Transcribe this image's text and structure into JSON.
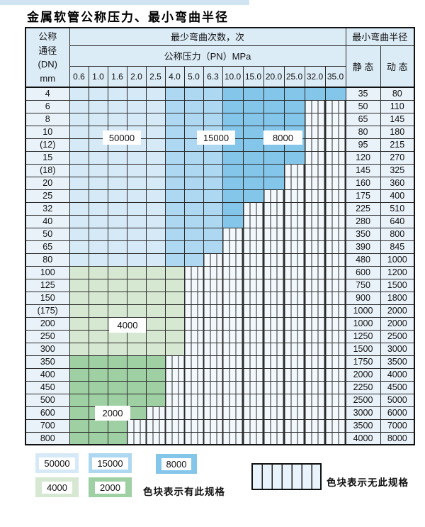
{
  "page_title": "金属软管公称压力、最小弯曲半径",
  "colors": {
    "blue_50000": "#d6e9f6",
    "blue_15000": "#aed8f1",
    "blue_8000": "#84c5ea",
    "green_4000": "#d6e8d1",
    "green_2000": "#9fd0a3",
    "hatch_bg": "#f2f8fc",
    "header_bg": "#dcecf7",
    "cell_bg": "#e9f2f9",
    "top_strip": "#cfe3f0"
  },
  "table": {
    "corner_lines": [
      "公称",
      "通径",
      "(DN)",
      "mm"
    ],
    "bend_cycles_header": "最少弯曲次数，次",
    "pressure_header": "公称压力（PN）MPa",
    "pressures": [
      "0.6",
      "1.0",
      "1.6",
      "2.0",
      "2.5",
      "4.0",
      "5.0",
      "6.3",
      "10.0",
      "15.0",
      "20.0",
      "25.0",
      "32.0",
      "35.0"
    ],
    "radius_header": "最小弯曲半径",
    "static_header": "静 态",
    "dynamic_header": "动 态",
    "rows": [
      {
        "dn": "4",
        "zone": "blue",
        "colored_through": "35.0",
        "static": 35,
        "dynamic": 80
      },
      {
        "dn": "6",
        "zone": "blue",
        "colored_through": "25.0",
        "static": 50,
        "dynamic": 110
      },
      {
        "dn": "8",
        "zone": "blue",
        "colored_through": "25.0",
        "static": 65,
        "dynamic": 145
      },
      {
        "dn": "10",
        "zone": "blue",
        "colored_through": "25.0",
        "static": 80,
        "dynamic": 180
      },
      {
        "dn": "(12)",
        "zone": "blue",
        "colored_through": "25.0",
        "static": 95,
        "dynamic": 215
      },
      {
        "dn": "15",
        "zone": "blue",
        "colored_through": "25.0",
        "static": 120,
        "dynamic": 270
      },
      {
        "dn": "(18)",
        "zone": "blue",
        "colored_through": "20.0",
        "static": 145,
        "dynamic": 325
      },
      {
        "dn": "20",
        "zone": "blue",
        "colored_through": "20.0",
        "static": 160,
        "dynamic": 360
      },
      {
        "dn": "25",
        "zone": "blue",
        "colored_through": "15.0",
        "static": 175,
        "dynamic": 400
      },
      {
        "dn": "32",
        "zone": "blue",
        "colored_through": "10.0",
        "static": 225,
        "dynamic": 510
      },
      {
        "dn": "40",
        "zone": "blue",
        "colored_through": "10.0",
        "static": 280,
        "dynamic": 640
      },
      {
        "dn": "50",
        "zone": "blue",
        "colored_through": "6.3",
        "static": 350,
        "dynamic": 800
      },
      {
        "dn": "65",
        "zone": "blue",
        "colored_through": "6.3",
        "static": 390,
        "dynamic": 845
      },
      {
        "dn": "80",
        "zone": "blue",
        "colored_through": "5.0",
        "static": 480,
        "dynamic": 1000
      },
      {
        "dn": "100",
        "zone": "green-4000",
        "colored_through": "4.0",
        "static": 600,
        "dynamic": 1200
      },
      {
        "dn": "125",
        "zone": "green-4000",
        "colored_through": "4.0",
        "static": 750,
        "dynamic": 1500
      },
      {
        "dn": "150",
        "zone": "green-4000",
        "colored_through": "4.0",
        "static": 900,
        "dynamic": 1800
      },
      {
        "dn": "(175)",
        "zone": "green-4000",
        "colored_through": "4.0",
        "static": 1000,
        "dynamic": 2000
      },
      {
        "dn": "200",
        "zone": "green-4000",
        "colored_through": "4.0",
        "static": 1000,
        "dynamic": 2000
      },
      {
        "dn": "250",
        "zone": "green-4000",
        "colored_through": "4.0",
        "static": 1250,
        "dynamic": 2500
      },
      {
        "dn": "300",
        "zone": "green-4000",
        "colored_through": "4.0",
        "static": 1500,
        "dynamic": 3000
      },
      {
        "dn": "350",
        "zone": "green-2000",
        "colored_through": "2.5",
        "static": 1750,
        "dynamic": 3500
      },
      {
        "dn": "400",
        "zone": "green-2000",
        "colored_through": "2.5",
        "static": 2000,
        "dynamic": 4000
      },
      {
        "dn": "450",
        "zone": "green-2000",
        "colored_through": "2.5",
        "static": 2250,
        "dynamic": 4500
      },
      {
        "dn": "500",
        "zone": "green-2000",
        "colored_through": "2.5",
        "static": 2500,
        "dynamic": 5000
      },
      {
        "dn": "600",
        "zone": "green-2000",
        "colored_through": "2.0",
        "static": 3000,
        "dynamic": 6000
      },
      {
        "dn": "700",
        "zone": "green-2000",
        "colored_through": "1.6",
        "static": 3500,
        "dynamic": 7000
      },
      {
        "dn": "800",
        "zone": "green-2000",
        "colored_through": "1.6",
        "static": 4000,
        "dynamic": 8000
      }
    ]
  },
  "region_labels": [
    {
      "text": "50000"
    },
    {
      "text": "15000"
    },
    {
      "text": "8000"
    },
    {
      "text": "4000"
    },
    {
      "text": "2000"
    }
  ],
  "legend": {
    "items": [
      {
        "value": "50000",
        "color": "#d6e9f6"
      },
      {
        "value": "15000",
        "color": "#aed8f1"
      },
      {
        "value": "8000",
        "color": "#84c5ea"
      },
      {
        "value": "4000",
        "color": "#d6e8d1"
      },
      {
        "value": "2000",
        "color": "#9fd0a3"
      }
    ],
    "present_label": "色块表示有此规格",
    "absent_label": "色块表示无此规格"
  },
  "chart_data": {
    "type": "table",
    "title": "金属软管公称压力、最小弯曲半径",
    "x_label": "公称压力（PN）MPa",
    "x": [
      0.6,
      1.0,
      1.6,
      2.0,
      2.5,
      4.0,
      5.0,
      6.3,
      10.0,
      15.0,
      20.0,
      25.0,
      32.0,
      35.0
    ],
    "y_label": "公称通径(DN) mm",
    "y": [
      "4",
      "6",
      "8",
      "10",
      "(12)",
      "15",
      "(18)",
      "20",
      "25",
      "32",
      "40",
      "50",
      "65",
      "80",
      "100",
      "125",
      "150",
      "(175)",
      "200",
      "250",
      "300",
      "350",
      "400",
      "450",
      "500",
      "600",
      "700",
      "800"
    ],
    "value_meaning": "最少弯曲次数(次)；null = 无此规格(斜线/竖线填充)",
    "matrix": [
      [
        50000,
        50000,
        50000,
        50000,
        50000,
        15000,
        15000,
        15000,
        8000,
        8000,
        8000,
        8000,
        8000,
        8000
      ],
      [
        50000,
        50000,
        50000,
        50000,
        50000,
        15000,
        15000,
        15000,
        8000,
        8000,
        8000,
        8000,
        null,
        null
      ],
      [
        50000,
        50000,
        50000,
        50000,
        50000,
        15000,
        15000,
        15000,
        8000,
        8000,
        8000,
        8000,
        null,
        null
      ],
      [
        50000,
        50000,
        50000,
        50000,
        50000,
        15000,
        15000,
        15000,
        8000,
        8000,
        8000,
        8000,
        null,
        null
      ],
      [
        50000,
        50000,
        50000,
        50000,
        50000,
        15000,
        15000,
        15000,
        8000,
        8000,
        8000,
        8000,
        null,
        null
      ],
      [
        50000,
        50000,
        50000,
        50000,
        50000,
        15000,
        15000,
        15000,
        8000,
        8000,
        8000,
        8000,
        null,
        null
      ],
      [
        50000,
        50000,
        50000,
        50000,
        50000,
        15000,
        15000,
        15000,
        8000,
        8000,
        8000,
        null,
        null,
        null
      ],
      [
        50000,
        50000,
        50000,
        50000,
        50000,
        15000,
        15000,
        15000,
        8000,
        8000,
        8000,
        null,
        null,
        null
      ],
      [
        50000,
        50000,
        50000,
        50000,
        50000,
        15000,
        15000,
        15000,
        8000,
        8000,
        null,
        null,
        null,
        null
      ],
      [
        50000,
        50000,
        50000,
        50000,
        50000,
        15000,
        15000,
        15000,
        8000,
        null,
        null,
        null,
        null,
        null
      ],
      [
        50000,
        50000,
        50000,
        50000,
        50000,
        15000,
        15000,
        15000,
        8000,
        null,
        null,
        null,
        null,
        null
      ],
      [
        50000,
        50000,
        50000,
        50000,
        50000,
        15000,
        15000,
        15000,
        null,
        null,
        null,
        null,
        null,
        null
      ],
      [
        50000,
        50000,
        50000,
        50000,
        50000,
        15000,
        15000,
        15000,
        null,
        null,
        null,
        null,
        null,
        null
      ],
      [
        50000,
        50000,
        50000,
        50000,
        50000,
        15000,
        15000,
        null,
        null,
        null,
        null,
        null,
        null,
        null
      ],
      [
        4000,
        4000,
        4000,
        4000,
        4000,
        4000,
        null,
        null,
        null,
        null,
        null,
        null,
        null,
        null
      ],
      [
        4000,
        4000,
        4000,
        4000,
        4000,
        4000,
        null,
        null,
        null,
        null,
        null,
        null,
        null,
        null
      ],
      [
        4000,
        4000,
        4000,
        4000,
        4000,
        4000,
        null,
        null,
        null,
        null,
        null,
        null,
        null,
        null
      ],
      [
        4000,
        4000,
        4000,
        4000,
        4000,
        4000,
        null,
        null,
        null,
        null,
        null,
        null,
        null,
        null
      ],
      [
        4000,
        4000,
        4000,
        4000,
        4000,
        4000,
        null,
        null,
        null,
        null,
        null,
        null,
        null,
        null
      ],
      [
        4000,
        4000,
        4000,
        4000,
        4000,
        4000,
        null,
        null,
        null,
        null,
        null,
        null,
        null,
        null
      ],
      [
        4000,
        4000,
        4000,
        4000,
        4000,
        4000,
        null,
        null,
        null,
        null,
        null,
        null,
        null,
        null
      ],
      [
        2000,
        2000,
        2000,
        2000,
        2000,
        null,
        null,
        null,
        null,
        null,
        null,
        null,
        null,
        null
      ],
      [
        2000,
        2000,
        2000,
        2000,
        2000,
        null,
        null,
        null,
        null,
        null,
        null,
        null,
        null,
        null
      ],
      [
        2000,
        2000,
        2000,
        2000,
        2000,
        null,
        null,
        null,
        null,
        null,
        null,
        null,
        null,
        null
      ],
      [
        2000,
        2000,
        2000,
        2000,
        2000,
        null,
        null,
        null,
        null,
        null,
        null,
        null,
        null,
        null
      ],
      [
        2000,
        2000,
        2000,
        2000,
        null,
        null,
        null,
        null,
        null,
        null,
        null,
        null,
        null,
        null
      ],
      [
        2000,
        2000,
        2000,
        null,
        null,
        null,
        null,
        null,
        null,
        null,
        null,
        null,
        null,
        null
      ],
      [
        2000,
        2000,
        2000,
        null,
        null,
        null,
        null,
        null,
        null,
        null,
        null,
        null,
        null,
        null
      ]
    ],
    "min_bend_radius_static": [
      35,
      50,
      65,
      80,
      95,
      120,
      145,
      160,
      175,
      225,
      280,
      350,
      390,
      480,
      600,
      750,
      900,
      1000,
      1000,
      1250,
      1500,
      1750,
      2000,
      2250,
      2500,
      3000,
      3500,
      4000
    ],
    "min_bend_radius_dynamic": [
      80,
      110,
      145,
      180,
      215,
      270,
      325,
      360,
      400,
      510,
      640,
      800,
      845,
      1000,
      1200,
      1500,
      1800,
      2000,
      2000,
      2500,
      3000,
      3500,
      4000,
      4500,
      5000,
      6000,
      7000,
      8000
    ]
  }
}
